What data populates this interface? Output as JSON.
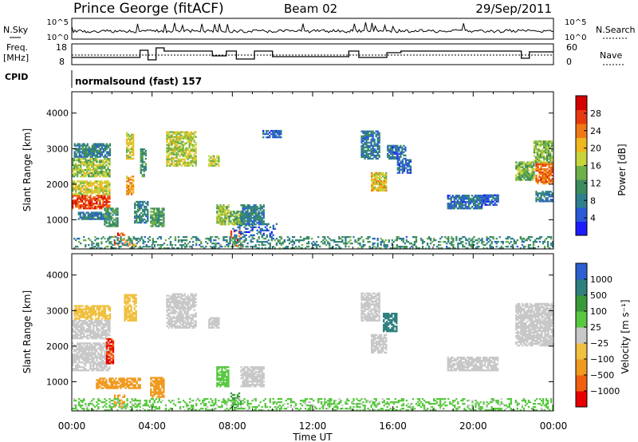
{
  "header": {
    "station": "Prince George (fitACF)",
    "beam": "Beam 02",
    "date": "29/Sep/2011"
  },
  "panels": {
    "nsky_label": "N.Sky",
    "nsky_ticks": [
      "10^5",
      "10^0"
    ],
    "nsearch_label": "N.Search",
    "nsearch_ticks": [
      "10^5",
      "10^0"
    ],
    "freq_label": "Freq.",
    "freq_unit": "[MHz]",
    "freq_ticks": [
      "18",
      "8"
    ],
    "nave_label": "Nave",
    "nave_ticks": [
      "60",
      "0"
    ],
    "cpid_label": "CPID",
    "cpid_value": "normalsound (fast) 157"
  },
  "chart_data": [
    {
      "type": "heatmap",
      "name": "power",
      "ylabel": "Slant Range [km]",
      "xlabel": "Time UT",
      "x_ticks": [
        "00:00",
        "04:00",
        "08:00",
        "12:00",
        "16:00",
        "20:00",
        "00:00"
      ],
      "xlim_hours": [
        0,
        24
      ],
      "y_ticks": [
        "1000",
        "2000",
        "3000",
        "4000"
      ],
      "ylim": [
        180,
        4600
      ],
      "colorbar": {
        "label": "Power [dB]",
        "ticks": [
          "28",
          "24",
          "20",
          "16",
          "12",
          "8",
          "4"
        ],
        "range": [
          0,
          32
        ],
        "colors": [
          "#1c1cff",
          "#2a5ad8",
          "#2f7f8f",
          "#3b8c5e",
          "#6eb04a",
          "#c8d43c",
          "#f0b820",
          "#f07818",
          "#e83a10",
          "#d40000"
        ]
      },
      "regions": [
        {
          "t": [
            0.0,
            1.9
          ],
          "r": [
            1300,
            1700
          ],
          "v": 27
        },
        {
          "t": [
            0.0,
            1.9
          ],
          "r": [
            1700,
            2100
          ],
          "v": 18
        },
        {
          "t": [
            0.0,
            1.9
          ],
          "r": [
            2200,
            2700
          ],
          "v": 16
        },
        {
          "t": [
            0.1,
            1.9
          ],
          "r": [
            2750,
            3150
          ],
          "v": 9
        },
        {
          "t": [
            0.3,
            1.9
          ],
          "r": [
            1000,
            1200
          ],
          "v": 8
        },
        {
          "t": [
            1.6,
            2.3
          ],
          "r": [
            800,
            1300
          ],
          "v": 12
        },
        {
          "t": [
            2.1,
            2.6
          ],
          "r": [
            280,
            600
          ],
          "v": 26
        },
        {
          "t": [
            2.6,
            3.2
          ],
          "r": [
            240,
            500
          ],
          "v": 23
        },
        {
          "t": [
            2.7,
            3.1
          ],
          "r": [
            1700,
            2200
          ],
          "v": 22
        },
        {
          "t": [
            2.7,
            3.1
          ],
          "r": [
            2700,
            3450
          ],
          "v": 18
        },
        {
          "t": [
            3.1,
            3.8
          ],
          "r": [
            900,
            1500
          ],
          "v": 9
        },
        {
          "t": [
            3.4,
            3.7
          ],
          "r": [
            2200,
            3000
          ],
          "v": 11
        },
        {
          "t": [
            3.9,
            4.6
          ],
          "r": [
            800,
            1300
          ],
          "v": 12
        },
        {
          "t": [
            4.7,
            6.2
          ],
          "r": [
            2500,
            3450
          ],
          "v": 17
        },
        {
          "t": [
            6.8,
            7.3
          ],
          "r": [
            2500,
            2800
          ],
          "v": 17
        },
        {
          "t": [
            7.2,
            7.8
          ],
          "r": [
            850,
            1400
          ],
          "v": 16
        },
        {
          "t": [
            7.9,
            8.4
          ],
          "r": [
            250,
            700
          ],
          "v": 28
        },
        {
          "t": [
            7.8,
            8.5
          ],
          "r": [
            850,
            1250
          ],
          "v": 14
        },
        {
          "t": [
            8.4,
            9.6
          ],
          "r": [
            850,
            1400
          ],
          "v": 9
        },
        {
          "t": [
            8.0,
            10.2
          ],
          "r": [
            500,
            900
          ],
          "v": 6
        },
        {
          "t": [
            9.5,
            10.4
          ],
          "r": [
            3300,
            3500
          ],
          "v": 6
        },
        {
          "t": [
            14.4,
            15.3
          ],
          "r": [
            2700,
            3500
          ],
          "v": 8
        },
        {
          "t": [
            14.9,
            15.7
          ],
          "r": [
            1800,
            2300
          ],
          "v": 19
        },
        {
          "t": [
            15.7,
            16.6
          ],
          "r": [
            2700,
            3100
          ],
          "v": 7
        },
        {
          "t": [
            16.2,
            16.9
          ],
          "r": [
            2300,
            2700
          ],
          "v": 6
        },
        {
          "t": [
            18.7,
            20.4
          ],
          "r": [
            1300,
            1700
          ],
          "v": 7
        },
        {
          "t": [
            20.4,
            21.2
          ],
          "r": [
            1400,
            1700
          ],
          "v": 5
        },
        {
          "t": [
            22.1,
            23.0
          ],
          "r": [
            2100,
            2600
          ],
          "v": 15
        },
        {
          "t": [
            23.1,
            23.95
          ],
          "r": [
            2000,
            2600
          ],
          "v": 25
        },
        {
          "t": [
            23.0,
            23.95
          ],
          "r": [
            2600,
            3200
          ],
          "v": 15
        },
        {
          "t": [
            23.1,
            23.95
          ],
          "r": [
            1500,
            1800
          ],
          "v": 8
        },
        {
          "t": [
            0.0,
            23.95
          ],
          "r": [
            180,
            500
          ],
          "v": 10
        }
      ]
    },
    {
      "type": "heatmap",
      "name": "velocity",
      "ylabel": "Slant Range [km]",
      "xlabel": "Time UT",
      "x_ticks": [
        "00:00",
        "04:00",
        "08:00",
        "12:00",
        "16:00",
        "20:00",
        "00:00"
      ],
      "xlim_hours": [
        0,
        24
      ],
      "y_ticks": [
        "1000",
        "2000",
        "3000",
        "4000"
      ],
      "ylim": [
        180,
        4600
      ],
      "colorbar": {
        "label": "Velocity [m s⁻¹]",
        "ticks": [
          "1000",
          "500",
          "100",
          "25",
          "−25",
          "−100",
          "−500",
          "−1000"
        ],
        "colors": [
          "#2c5fd0",
          "#2f7f7f",
          "#3a9a3a",
          "#58c840",
          "#c8c8c8",
          "#f0c040",
          "#f09a20",
          "#f06010",
          "#e80000"
        ]
      },
      "regions": [
        {
          "t": [
            0.0,
            1.9
          ],
          "r": [
            1300,
            1700
          ],
          "v": 0
        },
        {
          "t": [
            0.0,
            1.9
          ],
          "r": [
            1700,
            2100
          ],
          "v": 0
        },
        {
          "t": [
            0.0,
            1.9
          ],
          "r": [
            2200,
            2700
          ],
          "v": 0
        },
        {
          "t": [
            0.1,
            1.9
          ],
          "r": [
            2750,
            3150
          ],
          "v": -60
        },
        {
          "t": [
            1.7,
            2.1
          ],
          "r": [
            1500,
            2200
          ],
          "v": -1000
        },
        {
          "t": [
            2.1,
            2.6
          ],
          "r": [
            280,
            600
          ],
          "v": -150
        },
        {
          "t": [
            1.2,
            3.4
          ],
          "r": [
            800,
            1100
          ],
          "v": -300
        },
        {
          "t": [
            2.6,
            3.2
          ],
          "r": [
            2700,
            3450
          ],
          "v": -80
        },
        {
          "t": [
            3.9,
            4.6
          ],
          "r": [
            550,
            1100
          ],
          "v": -250
        },
        {
          "t": [
            4.7,
            6.2
          ],
          "r": [
            2500,
            3450
          ],
          "v": 0
        },
        {
          "t": [
            6.8,
            7.3
          ],
          "r": [
            2500,
            2800
          ],
          "v": 0
        },
        {
          "t": [
            7.2,
            7.8
          ],
          "r": [
            850,
            1400
          ],
          "v": 60
        },
        {
          "t": [
            7.9,
            8.4
          ],
          "r": [
            250,
            700
          ],
          "v": 150
        },
        {
          "t": [
            8.4,
            9.6
          ],
          "r": [
            850,
            1400
          ],
          "v": 0
        },
        {
          "t": [
            14.4,
            15.3
          ],
          "r": [
            2700,
            3500
          ],
          "v": 0
        },
        {
          "t": [
            14.9,
            15.7
          ],
          "r": [
            1800,
            2300
          ],
          "v": 0
        },
        {
          "t": [
            15.5,
            16.2
          ],
          "r": [
            2400,
            2900
          ],
          "v": 700
        },
        {
          "t": [
            18.7,
            21.2
          ],
          "r": [
            1300,
            1700
          ],
          "v": 0
        },
        {
          "t": [
            22.1,
            23.95
          ],
          "r": [
            2000,
            3200
          ],
          "v": 0
        },
        {
          "t": [
            0.0,
            23.95
          ],
          "r": [
            180,
            500
          ],
          "v": 40
        }
      ]
    }
  ]
}
